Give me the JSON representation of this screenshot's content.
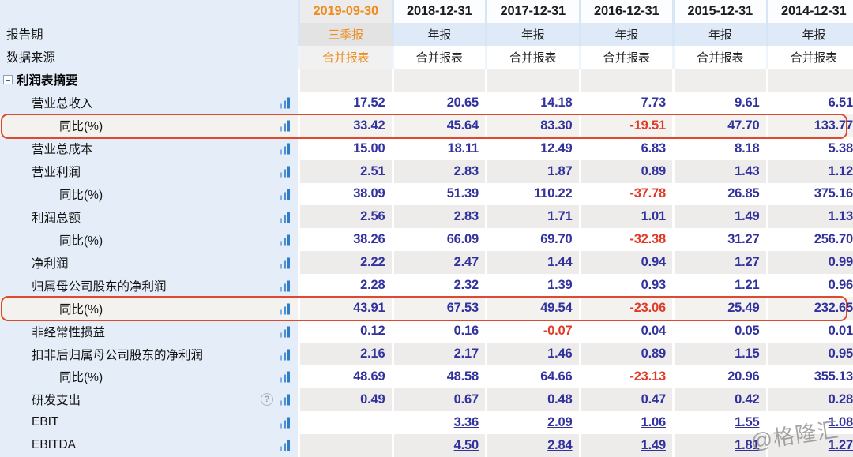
{
  "table": {
    "columns": [
      "2019-09-30",
      "2018-12-31",
      "2017-12-31",
      "2016-12-31",
      "2015-12-31",
      "2014-12-31"
    ],
    "current_column_index": 0,
    "header_rows": [
      {
        "label": "报告期",
        "values": [
          "三季报",
          "年报",
          "年报",
          "年报",
          "年报",
          "年报"
        ]
      },
      {
        "label": "数据来源",
        "values": [
          "合并报表",
          "合并报表",
          "合并报表",
          "合并报表",
          "合并报表",
          "合并报表"
        ]
      }
    ],
    "section": {
      "label": "利润表摘要"
    },
    "rows": [
      {
        "label": "营业总收入",
        "indent": 1,
        "values": [
          "17.52",
          "20.65",
          "14.18",
          "7.73",
          "9.61",
          "6.51"
        ]
      },
      {
        "label": "同比(%)",
        "indent": 2,
        "highlight": true,
        "values": [
          "33.42",
          "45.64",
          "83.30",
          "-19.51",
          "47.70",
          "133.77"
        ]
      },
      {
        "label": "营业总成本",
        "indent": 1,
        "values": [
          "15.00",
          "18.11",
          "12.49",
          "6.83",
          "8.18",
          "5.38"
        ]
      },
      {
        "label": "营业利润",
        "indent": 1,
        "values": [
          "2.51",
          "2.83",
          "1.87",
          "0.89",
          "1.43",
          "1.12"
        ]
      },
      {
        "label": "同比(%)",
        "indent": 2,
        "values": [
          "38.09",
          "51.39",
          "110.22",
          "-37.78",
          "26.85",
          "375.16"
        ]
      },
      {
        "label": "利润总额",
        "indent": 1,
        "values": [
          "2.56",
          "2.83",
          "1.71",
          "1.01",
          "1.49",
          "1.13"
        ]
      },
      {
        "label": "同比(%)",
        "indent": 2,
        "values": [
          "38.26",
          "66.09",
          "69.70",
          "-32.38",
          "31.27",
          "256.70"
        ]
      },
      {
        "label": "净利润",
        "indent": 1,
        "values": [
          "2.22",
          "2.47",
          "1.44",
          "0.94",
          "1.27",
          "0.99"
        ]
      },
      {
        "label": "归属母公司股东的净利润",
        "indent": 1,
        "values": [
          "2.28",
          "2.32",
          "1.39",
          "0.93",
          "1.21",
          "0.96"
        ]
      },
      {
        "label": "同比(%)",
        "indent": 2,
        "highlight": true,
        "values": [
          "43.91",
          "67.53",
          "49.54",
          "-23.06",
          "25.49",
          "232.65"
        ]
      },
      {
        "label": "非经常性损益",
        "indent": 1,
        "values": [
          "0.12",
          "0.16",
          "-0.07",
          "0.04",
          "0.05",
          "0.01"
        ]
      },
      {
        "label": "扣非后归属母公司股东的净利润",
        "indent": 1,
        "values": [
          "2.16",
          "2.17",
          "1.46",
          "0.89",
          "1.15",
          "0.95"
        ]
      },
      {
        "label": "同比(%)",
        "indent": 2,
        "values": [
          "48.69",
          "48.58",
          "64.66",
          "-23.13",
          "20.96",
          "355.13"
        ]
      },
      {
        "label": "研发支出",
        "indent": 1,
        "help_icon": true,
        "values": [
          "0.49",
          "0.67",
          "0.48",
          "0.47",
          "0.42",
          "0.28"
        ]
      },
      {
        "label": "EBIT",
        "indent": 1,
        "link_values": true,
        "values": [
          "",
          "3.36",
          "2.09",
          "1.06",
          "1.55",
          "1.08"
        ]
      },
      {
        "label": "EBITDA",
        "indent": 1,
        "link_values": true,
        "values": [
          "",
          "4.50",
          "2.84",
          "1.49",
          "1.81",
          "1.27"
        ]
      }
    ],
    "watermark": "@格隆汇",
    "colors": {
      "accent_orange": "#f08b1d",
      "value_blue": "#32329e",
      "negative_red": "#e03b28",
      "highlight_border": "#dd4a30",
      "label_column_bg": "#e4edf8",
      "stripe_gray": "#edecea",
      "period_row_bg": "#dfeaf8"
    }
  }
}
